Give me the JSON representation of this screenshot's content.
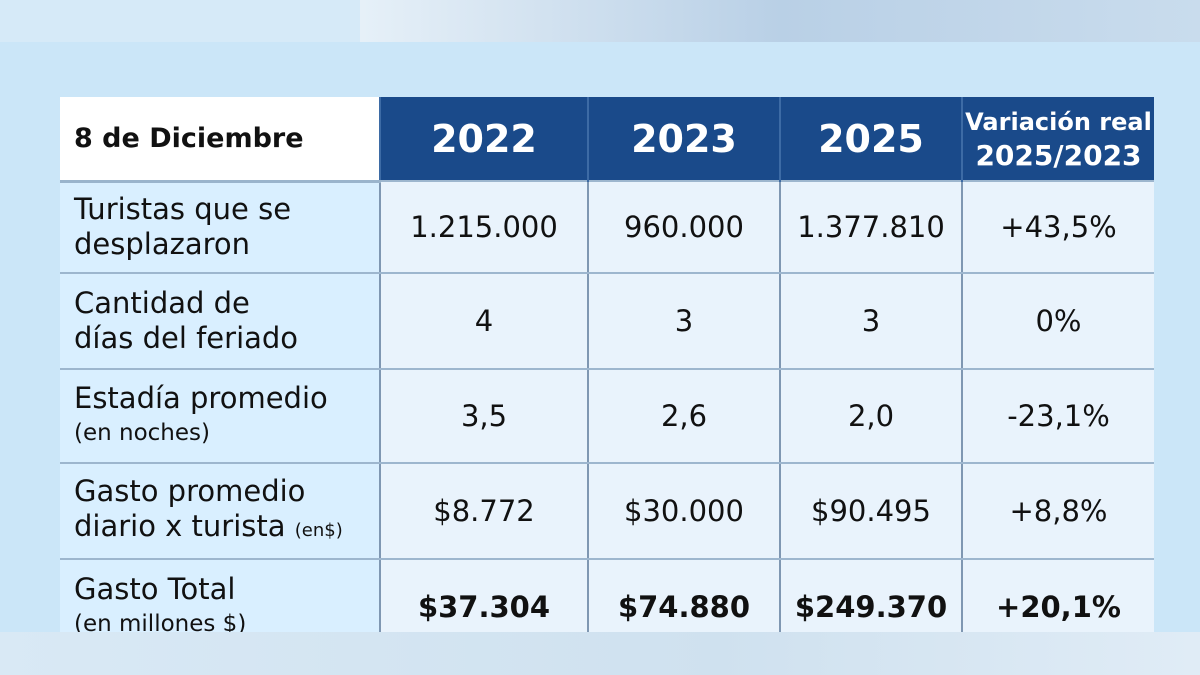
{
  "table": {
    "header": {
      "label": "8 de Diciembre",
      "years": [
        "2022",
        "2023",
        "2025"
      ],
      "variation_line1": "Variación real",
      "variation_line2": "2025/2023"
    },
    "rows": [
      {
        "label_line1": "Turistas que se",
        "label_line2": "desplazaron",
        "label_line2_small": "",
        "values": [
          "1.215.000",
          "960.000",
          "1.377.810"
        ],
        "variation": "+43,5%"
      },
      {
        "label_line1": "Cantidad de",
        "label_line2": "días del feriado",
        "label_line2_small": "",
        "values": [
          "4",
          "3",
          "3"
        ],
        "variation": "0%"
      },
      {
        "label_line1": "Estadía promedio",
        "label_line2": "(en noches)",
        "label_line2_small": "",
        "values": [
          "3,5",
          "2,6",
          "2,0"
        ],
        "variation": "-23,1%"
      },
      {
        "label_line1": "Gasto promedio",
        "label_line2": "diario x turista",
        "label_line2_small": "(en$)",
        "values": [
          "$8.772",
          "$30.000",
          "$90.495"
        ],
        "variation": "+8,8%"
      },
      {
        "label_line1": "Gasto Total",
        "label_line2": "(en millones $)",
        "label_line2_small": "",
        "values": [
          "$37.304",
          "$74.880",
          "$249.370"
        ],
        "variation": "+20,1%"
      }
    ]
  },
  "colors": {
    "header_blue": "#1a4a8a",
    "background_light_blue": "#cbe6f8",
    "cell_background": "#e9f3fc"
  }
}
